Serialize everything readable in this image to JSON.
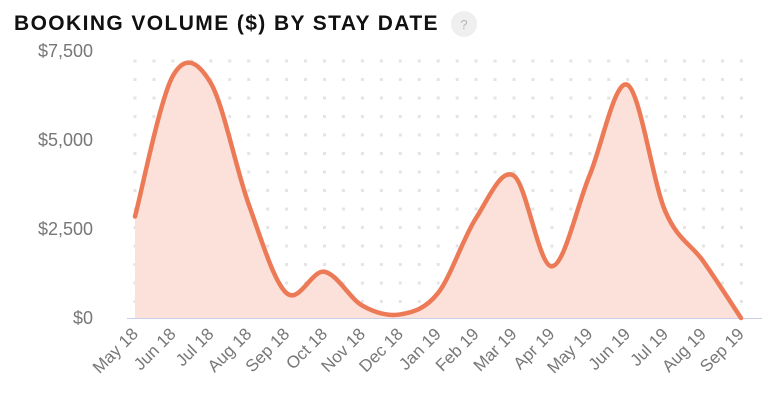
{
  "header": {
    "title": "BOOKING VOLUME ($) BY STAY DATE",
    "help_icon_label": "?"
  },
  "colors": {
    "line": "#ec7a56",
    "fill": "#fbe1d9",
    "axis": "#c8cfe6",
    "grid_dots": "#e4e4e4",
    "tick_text": "#777777"
  },
  "chart_data": {
    "type": "area",
    "title": "BOOKING VOLUME ($) BY STAY DATE",
    "xlabel": "",
    "ylabel": "",
    "categories": [
      "May 18",
      "Jun 18",
      "Jul 18",
      "Aug 18",
      "Sep 18",
      "Oct 18",
      "Nov 18",
      "Dec 18",
      "Jan 19",
      "Feb 19",
      "Mar 19",
      "Apr 19",
      "May 19",
      "Jun 19",
      "Jul 19",
      "Aug 19",
      "Sep 19"
    ],
    "values": [
      2850,
      6800,
      6600,
      3200,
      700,
      1300,
      350,
      100,
      700,
      2800,
      4000,
      1450,
      4000,
      6550,
      3000,
      1600,
      0
    ],
    "ylim": [
      0,
      7500
    ],
    "yticks": [
      0,
      2500,
      5000,
      7500
    ],
    "ytick_labels": [
      "$0",
      "$2,500",
      "$5,000",
      "$7,500"
    ],
    "grid": "dotted",
    "legend": "none"
  }
}
